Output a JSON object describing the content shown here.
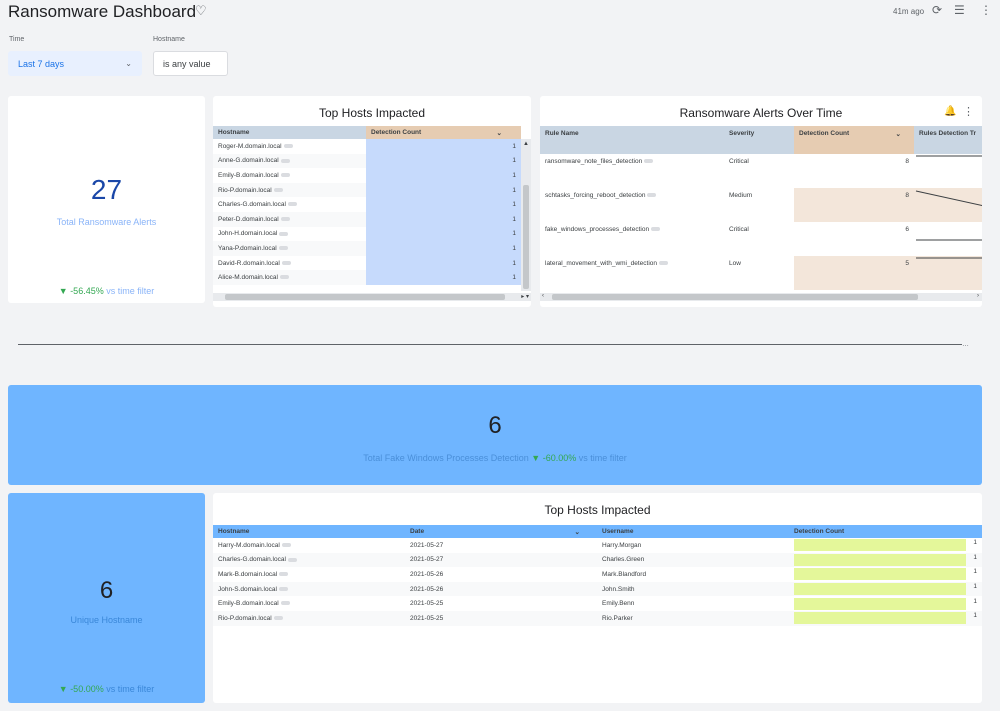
{
  "header": {
    "title": "Ransomware Dashboard",
    "updated": "41m ago",
    "refresh_icon": "refresh-icon",
    "filter_icon": "filter-icon",
    "more_icon": "more-vert-icon"
  },
  "filters": {
    "time_label": "Time",
    "time_value": "Last 7 days",
    "hostname_label": "Hostname",
    "hostname_value": "is any value"
  },
  "kpi_total": {
    "value": "27",
    "label": "Total Ransomware Alerts",
    "change": "-56.45%",
    "suffix": "vs time filter"
  },
  "top_hosts_1": {
    "title": "Top Hosts Impacted",
    "headers": [
      "Hostname",
      "Detection Count"
    ],
    "rows": [
      {
        "host": "Roger-M.domain.local",
        "count": "1"
      },
      {
        "host": "Anne-G.domain.local",
        "count": "1"
      },
      {
        "host": "Emily-B.domain.local",
        "count": "1"
      },
      {
        "host": "Rio-P.domain.local",
        "count": "1"
      },
      {
        "host": "Charles-G.domain.local",
        "count": "1"
      },
      {
        "host": "Peter-D.domain.local",
        "count": "1"
      },
      {
        "host": "John-H.domain.local",
        "count": "1"
      },
      {
        "host": "Yana-P.domain.local",
        "count": "1"
      },
      {
        "host": "David-R.domain.local",
        "count": "1"
      },
      {
        "host": "Alice-M.domain.local",
        "count": "1"
      }
    ]
  },
  "alerts_over_time": {
    "title": "Ransomware Alerts Over Time",
    "headers": [
      "Rule Name",
      "Severity",
      "Detection Count",
      "Rules Detection Tr"
    ],
    "rows": [
      {
        "rule": "ransomware_note_files_detection",
        "severity": "Critical",
        "count": "8"
      },
      {
        "rule": "schtasks_forcing_reboot_detection",
        "severity": "Medium",
        "count": "8"
      },
      {
        "rule": "fake_windows_processes_detection",
        "severity": "Critical",
        "count": "6"
      },
      {
        "rule": "lateral_movement_with_wmi_detection",
        "severity": "Low",
        "count": "5"
      }
    ]
  },
  "kpi_fake": {
    "value": "6",
    "label": "Total Fake Windows Processes Detection",
    "change": "-60.00%",
    "suffix": "vs time filter"
  },
  "kpi_unique": {
    "value": "6",
    "label": "Unique Hostname",
    "change": "-50.00%",
    "suffix": "vs time filter"
  },
  "top_hosts_2": {
    "title": "Top Hosts Impacted",
    "headers": [
      "Hostname",
      "Date",
      "Username",
      "Detection Count"
    ],
    "rows": [
      {
        "host": "Harry-M.domain.local",
        "date": "2021-05-27",
        "user": "Harry.Morgan",
        "count": "1"
      },
      {
        "host": "Charles-G.domain.local",
        "date": "2021-05-27",
        "user": "Charles.Green",
        "count": "1"
      },
      {
        "host": "Mark-B.domain.local",
        "date": "2021-05-26",
        "user": "Mark.Blandford",
        "count": "1"
      },
      {
        "host": "John-S.domain.local",
        "date": "2021-05-26",
        "user": "John.Smith",
        "count": "1"
      },
      {
        "host": "Emily-B.domain.local",
        "date": "2021-05-25",
        "user": "Emily.Benn",
        "count": "1"
      },
      {
        "host": "Rio-P.domain.local",
        "date": "2021-05-25",
        "user": "Rio.Parker",
        "count": "1"
      }
    ]
  },
  "colors": {
    "accent_blue": "#1a73e8",
    "kpi_band": "#6fb5ff",
    "count_bar_blue": "#c6dafc",
    "count_bar_green": "#e4f79a",
    "header_tan": "#e6ccb2",
    "down_green": "#34a853"
  }
}
